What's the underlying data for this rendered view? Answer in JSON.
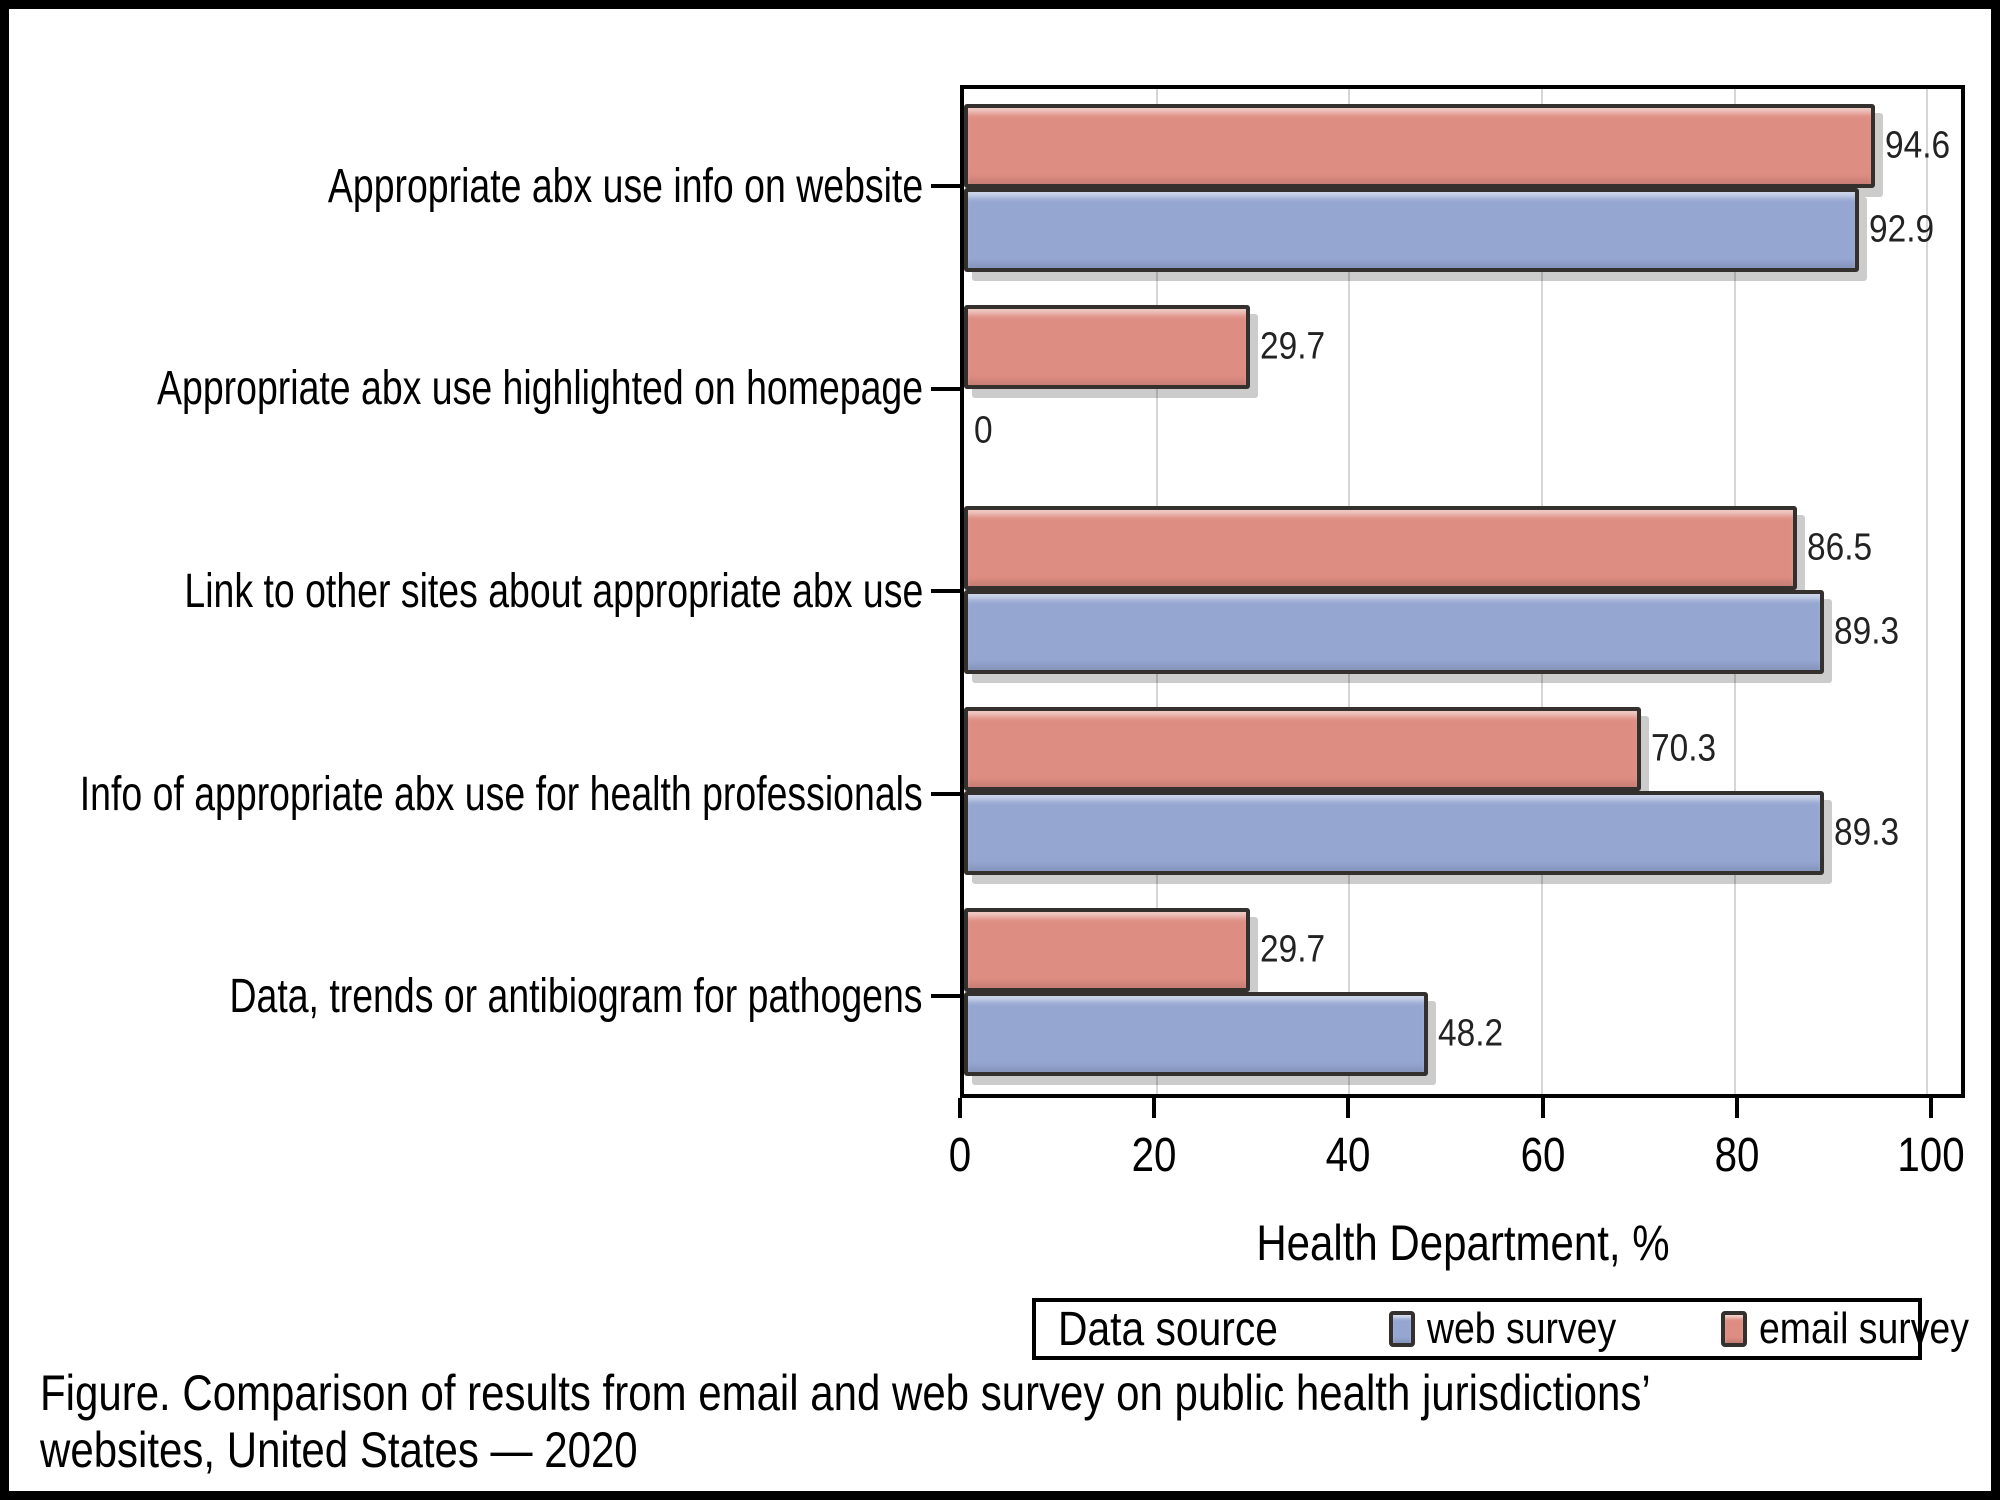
{
  "chart_data": {
    "type": "bar",
    "orientation": "horizontal",
    "categories": [
      "Appropriate abx use info on website",
      "Appropriate abx use highlighted on homepage",
      "Link to other sites about appropriate abx use",
      "Info of appropriate abx use for health professionals",
      "Data, trends or antibiogram for pathogens"
    ],
    "series": [
      {
        "name": "web survey",
        "color": "#95a6d1",
        "values": [
          92.9,
          0,
          89.3,
          89.3,
          48.2
        ]
      },
      {
        "name": "email survey",
        "color": "#de8d82",
        "values": [
          94.6,
          29.7,
          86.5,
          70.3,
          29.7
        ]
      }
    ],
    "group_bar_order_top_to_bottom": [
      "email survey",
      "web survey"
    ],
    "value_labels_shown": true,
    "xlabel": "Health Department, %",
    "xlim": [
      0,
      103.5
    ],
    "xticks": [
      0,
      20,
      40,
      60,
      80,
      100
    ],
    "grid": "vertical",
    "legend": {
      "title": "Data source",
      "position": "bottom",
      "entries": [
        "web survey",
        "email survey"
      ]
    },
    "caption": "Figure. Comparison of results from email and web survey on public health jurisdictions’ websites, United States — 2020",
    "caption_lines": [
      "Figure. Comparison of results from email and web survey on public health jurisdictions’",
      "websites, United States — 2020"
    ],
    "style": {
      "grid_color": "#d6d6d6",
      "bar_border_color": "#34302e",
      "plot_border_color": "#000000",
      "value_label_color": "#222222",
      "shadow_color": "rgba(0,0,0,0.20)"
    }
  }
}
